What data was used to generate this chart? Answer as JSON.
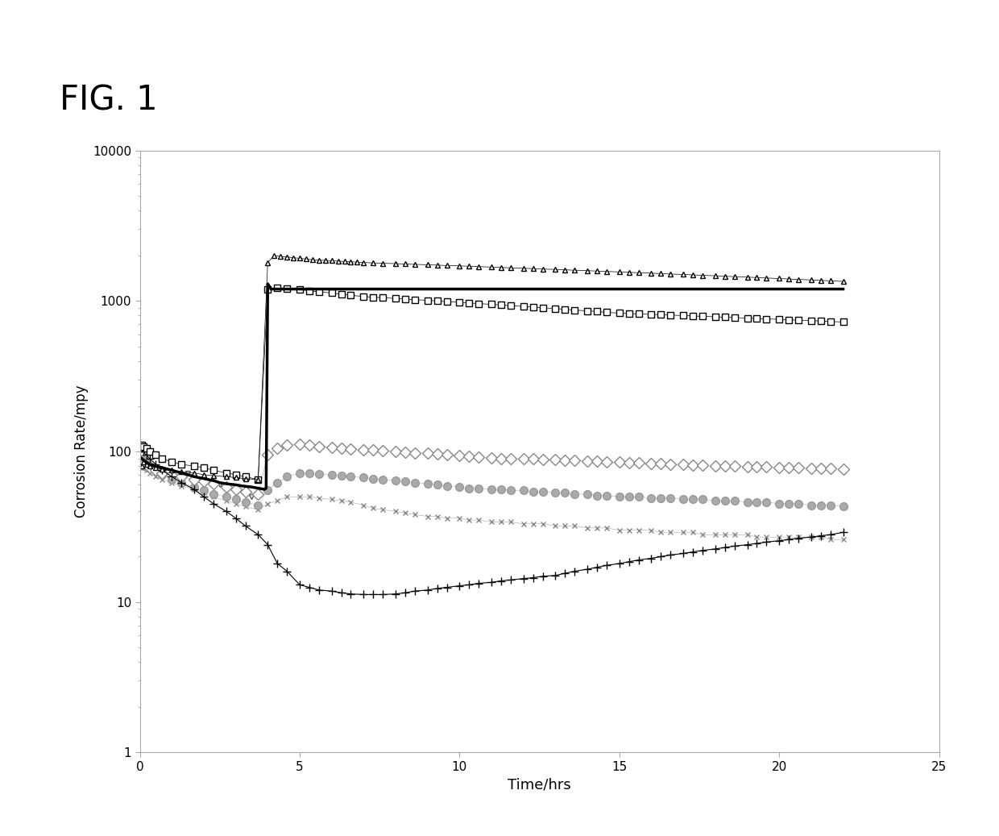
{
  "title": "FIG. 1",
  "xlabel": "Time/hrs",
  "ylabel": "Corrosion Rate/mpy",
  "xlim": [
    0,
    25
  ],
  "ylim": [
    1,
    10000
  ],
  "xticks": [
    0,
    5,
    10,
    15,
    20,
    25
  ],
  "background_color": "#ffffff",
  "series": {
    "triangles": {
      "marker": "^",
      "color": "#000000",
      "markersize": 5,
      "linewidth": 0.5,
      "markerfacecolor": "white",
      "x": [
        0.05,
        0.1,
        0.2,
        0.3,
        0.5,
        0.7,
        1.0,
        1.3,
        1.7,
        2.0,
        2.3,
        2.7,
        3.0,
        3.3,
        3.7,
        4.0,
        4.2,
        4.4,
        4.6,
        4.8,
        5.0,
        5.2,
        5.4,
        5.6,
        5.8,
        6.0,
        6.2,
        6.4,
        6.6,
        6.8,
        7.0,
        7.3,
        7.6,
        8.0,
        8.3,
        8.6,
        9.0,
        9.3,
        9.6,
        10.0,
        10.3,
        10.6,
        11.0,
        11.3,
        11.6,
        12.0,
        12.3,
        12.6,
        13.0,
        13.3,
        13.6,
        14.0,
        14.3,
        14.6,
        15.0,
        15.3,
        15.6,
        16.0,
        16.3,
        16.6,
        17.0,
        17.3,
        17.6,
        18.0,
        18.3,
        18.6,
        19.0,
        19.3,
        19.6,
        20.0,
        20.3,
        20.6,
        21.0,
        21.3,
        21.6,
        22.0
      ],
      "y": [
        80,
        85,
        82,
        80,
        78,
        76,
        75,
        73,
        72,
        70,
        69,
        68,
        67,
        66,
        65,
        1800,
        2000,
        1980,
        1960,
        1940,
        1920,
        1900,
        1880,
        1870,
        1860,
        1850,
        1840,
        1830,
        1820,
        1810,
        1800,
        1790,
        1780,
        1770,
        1760,
        1750,
        1740,
        1730,
        1720,
        1710,
        1700,
        1690,
        1680,
        1670,
        1660,
        1650,
        1640,
        1630,
        1620,
        1610,
        1600,
        1590,
        1580,
        1570,
        1560,
        1550,
        1540,
        1530,
        1520,
        1510,
        1500,
        1490,
        1480,
        1470,
        1460,
        1450,
        1440,
        1430,
        1420,
        1410,
        1400,
        1390,
        1380,
        1370,
        1360,
        1350
      ]
    },
    "squares": {
      "marker": "s",
      "color": "#000000",
      "markersize": 6,
      "linewidth": 0.5,
      "markerfacecolor": "white",
      "x": [
        0.05,
        0.1,
        0.2,
        0.3,
        0.5,
        0.7,
        1.0,
        1.3,
        1.7,
        2.0,
        2.3,
        2.7,
        3.0,
        3.3,
        3.7,
        4.0,
        4.3,
        4.6,
        5.0,
        5.3,
        5.6,
        6.0,
        6.3,
        6.6,
        7.0,
        7.3,
        7.6,
        8.0,
        8.3,
        8.6,
        9.0,
        9.3,
        9.6,
        10.0,
        10.3,
        10.6,
        11.0,
        11.3,
        11.6,
        12.0,
        12.3,
        12.6,
        13.0,
        13.3,
        13.6,
        14.0,
        14.3,
        14.6,
        15.0,
        15.3,
        15.6,
        16.0,
        16.3,
        16.6,
        17.0,
        17.3,
        17.6,
        18.0,
        18.3,
        18.6,
        19.0,
        19.3,
        19.6,
        20.0,
        20.3,
        20.6,
        21.0,
        21.3,
        21.6,
        22.0
      ],
      "y": [
        110,
        108,
        105,
        100,
        95,
        90,
        85,
        82,
        80,
        78,
        75,
        72,
        70,
        68,
        65,
        1200,
        1220,
        1210,
        1190,
        1170,
        1150,
        1130,
        1110,
        1090,
        1070,
        1060,
        1050,
        1040,
        1030,
        1020,
        1010,
        1000,
        990,
        980,
        970,
        960,
        950,
        940,
        930,
        920,
        910,
        900,
        890,
        880,
        870,
        860,
        850,
        840,
        830,
        825,
        820,
        815,
        810,
        805,
        800,
        795,
        790,
        785,
        780,
        775,
        770,
        765,
        760,
        755,
        750,
        745,
        740,
        735,
        730,
        725
      ]
    },
    "solid_black": {
      "color": "#000000",
      "linewidth": 2.5,
      "x": [
        0.05,
        0.1,
        0.2,
        0.3,
        0.5,
        0.7,
        1.0,
        1.3,
        1.5,
        1.7,
        2.0,
        2.3,
        2.5,
        2.7,
        3.0,
        3.2,
        3.5,
        3.7,
        3.9,
        3.95,
        4.0,
        4.05,
        4.1,
        22.0
      ],
      "y": [
        90,
        88,
        85,
        82,
        80,
        78,
        75,
        72,
        70,
        68,
        66,
        64,
        62,
        61,
        60,
        59,
        58,
        57,
        56,
        57,
        1300,
        1250,
        1200,
        1200
      ]
    },
    "diamonds": {
      "marker": "D",
      "color": "#888888",
      "markersize": 7,
      "linewidth": 0.3,
      "markerfacecolor": "white",
      "x": [
        0.05,
        0.1,
        0.2,
        0.3,
        0.5,
        0.7,
        1.0,
        1.3,
        1.7,
        2.0,
        2.3,
        2.7,
        3.0,
        3.3,
        3.7,
        4.0,
        4.3,
        4.6,
        5.0,
        5.3,
        5.6,
        6.0,
        6.3,
        6.6,
        7.0,
        7.3,
        7.6,
        8.0,
        8.3,
        8.6,
        9.0,
        9.3,
        9.6,
        10.0,
        10.3,
        10.6,
        11.0,
        11.3,
        11.6,
        12.0,
        12.3,
        12.6,
        13.0,
        13.3,
        13.6,
        14.0,
        14.3,
        14.6,
        15.0,
        15.3,
        15.6,
        16.0,
        16.3,
        16.6,
        17.0,
        17.3,
        17.6,
        18.0,
        18.3,
        18.6,
        19.0,
        19.3,
        19.6,
        20.0,
        20.3,
        20.6,
        21.0,
        21.3,
        21.6,
        22.0
      ],
      "y": [
        85,
        82,
        80,
        78,
        75,
        72,
        70,
        68,
        65,
        63,
        61,
        58,
        56,
        54,
        52,
        95,
        105,
        110,
        112,
        110,
        108,
        106,
        105,
        104,
        103,
        102,
        101,
        100,
        99,
        98,
        97,
        96,
        95,
        94,
        93,
        92,
        91,
        90,
        90,
        89,
        89,
        88,
        88,
        87,
        87,
        86,
        86,
        85,
        85,
        84,
        84,
        83,
        83,
        82,
        82,
        81,
        81,
        80,
        80,
        80,
        79,
        79,
        79,
        78,
        78,
        78,
        77,
        77,
        77,
        76
      ]
    },
    "circles": {
      "marker": "o",
      "color": "#999999",
      "markersize": 7,
      "linewidth": 0.3,
      "markerfacecolor": "#aaaaaa",
      "x": [
        0.05,
        0.1,
        0.2,
        0.3,
        0.5,
        0.7,
        1.0,
        1.3,
        1.7,
        2.0,
        2.3,
        2.7,
        3.0,
        3.3,
        3.7,
        4.0,
        4.3,
        4.6,
        5.0,
        5.3,
        5.6,
        6.0,
        6.3,
        6.6,
        7.0,
        7.3,
        7.6,
        8.0,
        8.3,
        8.6,
        9.0,
        9.3,
        9.6,
        10.0,
        10.3,
        10.6,
        11.0,
        11.3,
        11.6,
        12.0,
        12.3,
        12.6,
        13.0,
        13.3,
        13.6,
        14.0,
        14.3,
        14.6,
        15.0,
        15.3,
        15.6,
        16.0,
        16.3,
        16.6,
        17.0,
        17.3,
        17.6,
        18.0,
        18.3,
        18.6,
        19.0,
        19.3,
        19.6,
        20.0,
        20.3,
        20.6,
        21.0,
        21.3,
        21.6,
        22.0
      ],
      "y": [
        90,
        88,
        85,
        80,
        75,
        70,
        65,
        62,
        58,
        55,
        52,
        50,
        48,
        46,
        44,
        55,
        62,
        68,
        72,
        72,
        71,
        70,
        69,
        68,
        67,
        66,
        65,
        64,
        63,
        62,
        61,
        60,
        59,
        58,
        57,
        57,
        56,
        56,
        55,
        55,
        54,
        54,
        53,
        53,
        52,
        52,
        51,
        51,
        50,
        50,
        50,
        49,
        49,
        49,
        48,
        48,
        48,
        47,
        47,
        47,
        46,
        46,
        46,
        45,
        45,
        45,
        44,
        44,
        44,
        43
      ]
    },
    "x_markers": {
      "marker": "x",
      "color": "#888888",
      "markersize": 5,
      "linewidth": 0.3,
      "x": [
        0.05,
        0.1,
        0.2,
        0.3,
        0.5,
        0.7,
        1.0,
        1.3,
        1.7,
        2.0,
        2.3,
        2.7,
        3.0,
        3.3,
        3.7,
        4.0,
        4.3,
        4.6,
        5.0,
        5.3,
        5.6,
        6.0,
        6.3,
        6.6,
        7.0,
        7.3,
        7.6,
        8.0,
        8.3,
        8.6,
        9.0,
        9.3,
        9.6,
        10.0,
        10.3,
        10.6,
        11.0,
        11.3,
        11.6,
        12.0,
        12.3,
        12.6,
        13.0,
        13.3,
        13.6,
        14.0,
        14.3,
        14.6,
        15.0,
        15.3,
        15.6,
        16.0,
        16.3,
        16.6,
        17.0,
        17.3,
        17.6,
        18.0,
        18.3,
        18.6,
        19.0,
        19.3,
        19.6,
        20.0,
        20.3,
        20.6,
        21.0,
        21.3,
        21.6,
        22.0
      ],
      "y": [
        80,
        78,
        75,
        72,
        68,
        65,
        62,
        59,
        56,
        53,
        50,
        47,
        45,
        43,
        41,
        45,
        47,
        50,
        50,
        50,
        49,
        48,
        47,
        46,
        44,
        42,
        41,
        40,
        39,
        38,
        37,
        37,
        36,
        36,
        35,
        35,
        34,
        34,
        34,
        33,
        33,
        33,
        32,
        32,
        32,
        31,
        31,
        31,
        30,
        30,
        30,
        30,
        29,
        29,
        29,
        29,
        28,
        28,
        28,
        28,
        28,
        27,
        27,
        27,
        27,
        27,
        27,
        27,
        26,
        26
      ]
    },
    "plus_markers": {
      "marker": "+",
      "color": "#000000",
      "markersize": 7,
      "linewidth": 0.8,
      "x": [
        0.05,
        0.1,
        0.2,
        0.3,
        0.5,
        0.7,
        1.0,
        1.3,
        1.7,
        2.0,
        2.3,
        2.7,
        3.0,
        3.3,
        3.7,
        4.0,
        4.3,
        4.6,
        5.0,
        5.3,
        5.6,
        6.0,
        6.3,
        6.6,
        7.0,
        7.3,
        7.6,
        8.0,
        8.3,
        8.6,
        9.0,
        9.3,
        9.6,
        10.0,
        10.3,
        10.6,
        11.0,
        11.3,
        11.6,
        12.0,
        12.3,
        12.6,
        13.0,
        13.3,
        13.6,
        14.0,
        14.3,
        14.6,
        15.0,
        15.3,
        15.6,
        16.0,
        16.3,
        16.6,
        17.0,
        17.3,
        17.6,
        18.0,
        18.3,
        18.6,
        19.0,
        19.3,
        19.6,
        20.0,
        20.3,
        20.6,
        21.0,
        21.3,
        21.6,
        22.0
      ],
      "y": [
        105,
        100,
        95,
        90,
        82,
        75,
        68,
        62,
        56,
        50,
        45,
        40,
        36,
        32,
        28,
        24,
        18,
        16,
        13,
        12.5,
        12,
        11.8,
        11.5,
        11.3,
        11.2,
        11.2,
        11.2,
        11.3,
        11.5,
        11.8,
        12.0,
        12.3,
        12.5,
        12.8,
        13.0,
        13.3,
        13.5,
        13.8,
        14.0,
        14.3,
        14.5,
        14.8,
        15.0,
        15.5,
        16.0,
        16.5,
        17.0,
        17.5,
        18.0,
        18.5,
        19.0,
        19.5,
        20.0,
        20.5,
        21.0,
        21.5,
        22.0,
        22.5,
        23.0,
        23.5,
        24.0,
        24.5,
        25.0,
        25.5,
        26.0,
        26.5,
        27.0,
        27.5,
        28.0,
        29.0
      ]
    },
    "small_diamond_triangles": {
      "marker": "v",
      "color": "#555555",
      "markersize": 5,
      "linewidth": 0.3,
      "markerfacecolor": "white",
      "x": [
        1.5,
        2.0,
        2.5,
        3.0,
        3.5
      ],
      "y": [
        72,
        65,
        60,
        55,
        50
      ]
    }
  }
}
